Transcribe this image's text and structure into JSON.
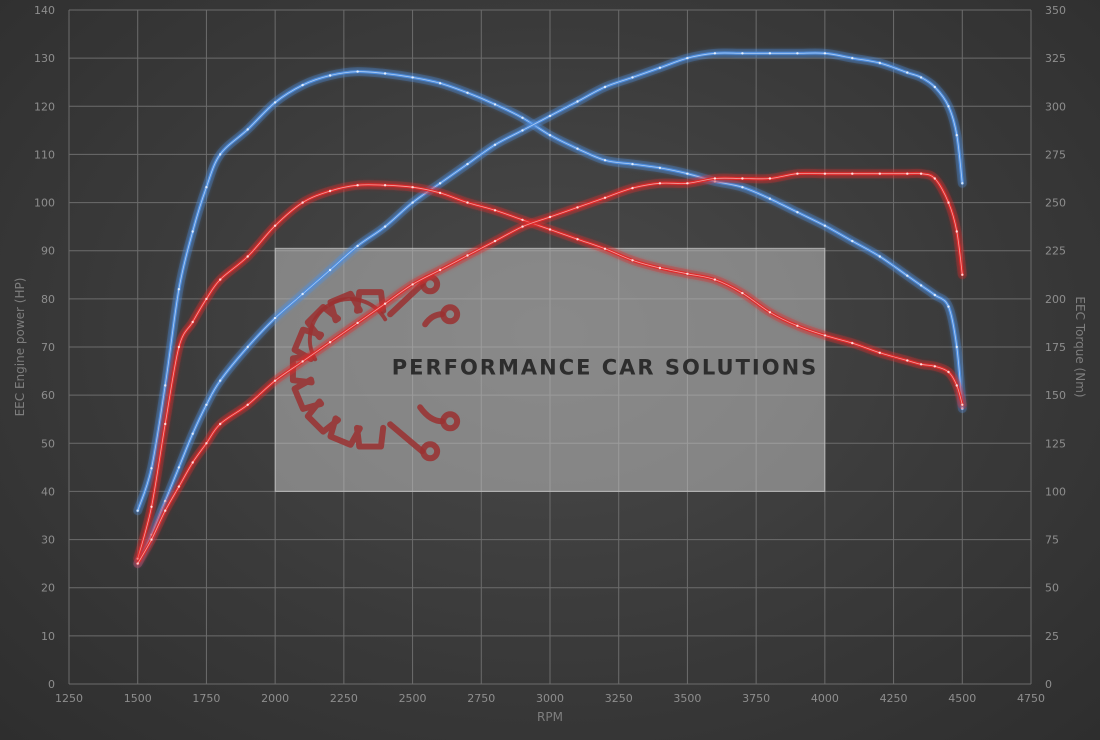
{
  "chart_data": {
    "type": "line",
    "xlabel": "RPM",
    "ylabel_left": "EEC Engine power (HP)",
    "ylabel_right": "EEC Torque (Nm)",
    "xlim": [
      1250,
      4750
    ],
    "ylim_left": [
      0,
      140
    ],
    "ylim_right": [
      0,
      350
    ],
    "x_ticks": [
      1250,
      1500,
      1750,
      2000,
      2250,
      2500,
      2750,
      3000,
      3250,
      3500,
      3750,
      4000,
      4250,
      4500,
      4750
    ],
    "y_ticks_left": [
      0,
      10,
      20,
      30,
      40,
      50,
      60,
      70,
      80,
      90,
      100,
      110,
      120,
      130,
      140
    ],
    "y_ticks_right": [
      0,
      25,
      50,
      75,
      100,
      125,
      150,
      175,
      200,
      225,
      250,
      275,
      300,
      325,
      350
    ],
    "grid": true,
    "series": [
      {
        "axis": "right",
        "color": "#4f8fe0",
        "x": [
          1500,
          1550,
          1600,
          1650,
          1700,
          1750,
          1800,
          1900,
          2000,
          2100,
          2200,
          2300,
          2400,
          2500,
          2600,
          2700,
          2800,
          2900,
          3000,
          3100,
          3200,
          3300,
          3400,
          3500,
          3600,
          3700,
          3800,
          3900,
          4000,
          4100,
          4200,
          4300,
          4350,
          4400,
          4450,
          4480,
          4500
        ],
        "y": [
          90,
          112,
          155,
          205,
          235,
          258,
          275,
          288,
          302,
          311,
          316,
          318,
          317,
          315,
          312,
          307,
          301,
          294,
          285,
          278,
          272,
          270,
          268,
          265,
          261,
          258,
          252,
          245,
          238,
          230,
          222,
          212,
          207,
          202,
          196,
          175,
          143
        ]
      },
      {
        "axis": "left",
        "color": "#4f8fe0",
        "x": [
          1500,
          1550,
          1600,
          1650,
          1700,
          1750,
          1800,
          1900,
          2000,
          2100,
          2200,
          2300,
          2400,
          2500,
          2600,
          2700,
          2800,
          2900,
          3000,
          3100,
          3200,
          3300,
          3400,
          3500,
          3600,
          3700,
          3800,
          3900,
          4000,
          4100,
          4200,
          4300,
          4350,
          4400,
          4450,
          4480,
          4500
        ],
        "y": [
          25,
          31,
          38,
          45,
          52,
          58,
          63,
          70,
          76,
          81,
          86,
          91,
          95,
          100,
          104,
          108,
          112,
          115,
          118,
          121,
          124,
          126,
          128,
          130,
          131,
          131,
          131,
          131,
          131,
          130,
          129,
          127,
          126,
          124,
          120,
          114,
          104
        ]
      },
      {
        "axis": "right",
        "color": "#e02a2a",
        "x": [
          1500,
          1550,
          1600,
          1650,
          1700,
          1750,
          1800,
          1900,
          2000,
          2100,
          2200,
          2300,
          2400,
          2500,
          2600,
          2700,
          2800,
          2900,
          3000,
          3100,
          3200,
          3300,
          3400,
          3500,
          3600,
          3700,
          3800,
          3900,
          4000,
          4100,
          4200,
          4300,
          4350,
          4400,
          4450,
          4480,
          4500
        ],
        "y": [
          65,
          92,
          135,
          175,
          188,
          200,
          210,
          222,
          238,
          250,
          256,
          259,
          259,
          258,
          255,
          250,
          246,
          241,
          236,
          231,
          226,
          220,
          216,
          213,
          210,
          203,
          193,
          186,
          181,
          177,
          172,
          168,
          166,
          165,
          162,
          155,
          145
        ]
      },
      {
        "axis": "left",
        "color": "#e02a2a",
        "x": [
          1500,
          1550,
          1600,
          1650,
          1700,
          1750,
          1800,
          1900,
          2000,
          2100,
          2200,
          2300,
          2400,
          2500,
          2600,
          2700,
          2800,
          2900,
          3000,
          3100,
          3200,
          3300,
          3400,
          3500,
          3600,
          3700,
          3800,
          3900,
          4000,
          4100,
          4200,
          4300,
          4350,
          4400,
          4450,
          4480,
          4500
        ],
        "y": [
          25,
          30,
          36,
          41,
          46,
          50,
          54,
          58,
          63,
          67,
          71,
          75,
          79,
          83,
          86,
          89,
          92,
          95,
          97,
          99,
          101,
          103,
          104,
          104,
          105,
          105,
          105,
          106,
          106,
          106,
          106,
          106,
          106,
          105,
          100,
          94,
          85
        ]
      }
    ]
  },
  "watermark": {
    "text": "PERFORMANCE CAR SOLUTIONS",
    "x_range": [
      2000,
      4000
    ],
    "y_range_left": [
      40,
      90.5
    ],
    "icon": "gear-circuit-logo-icon",
    "accent": "#9a3030"
  }
}
